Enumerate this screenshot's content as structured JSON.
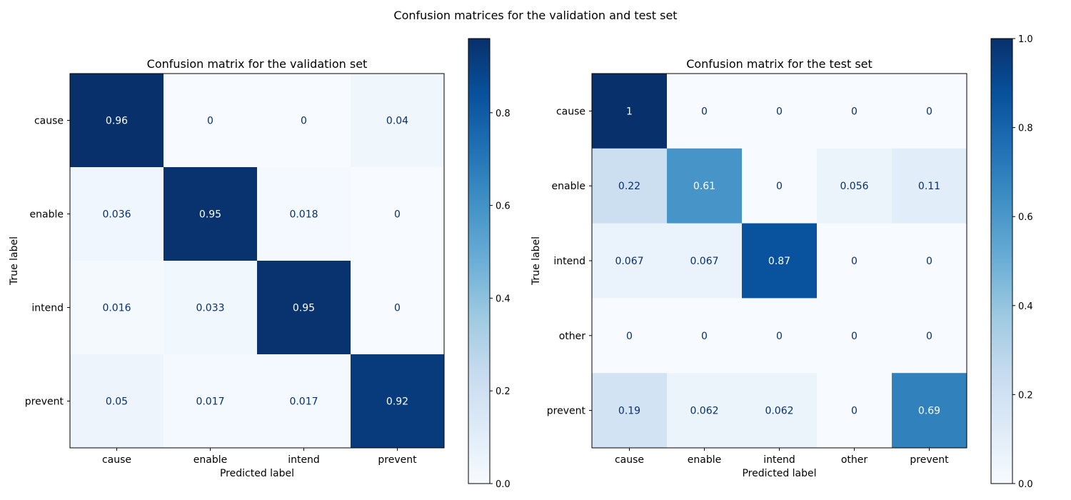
{
  "suptitle": "Confusion matrices for the validation and test set",
  "chart_data": [
    {
      "type": "heatmap",
      "title": "Confusion matrix for the validation set",
      "xlabel": "Predicted label",
      "ylabel": "True label",
      "x_categories": [
        "cause",
        "enable",
        "intend",
        "prevent"
      ],
      "y_categories": [
        "cause",
        "enable",
        "intend",
        "prevent"
      ],
      "values": [
        [
          0.96,
          0,
          0,
          0.04
        ],
        [
          0.036,
          0.95,
          0.018,
          0
        ],
        [
          0.016,
          0.033,
          0.95,
          0
        ],
        [
          0.05,
          0.017,
          0.017,
          0.92
        ]
      ],
      "cell_labels": [
        [
          "0.96",
          "0",
          "0",
          "0.04"
        ],
        [
          "0.036",
          "0.95",
          "0.018",
          "0"
        ],
        [
          "0.016",
          "0.033",
          "0.95",
          "0"
        ],
        [
          "0.05",
          "0.017",
          "0.017",
          "0.92"
        ]
      ],
      "colormap": "Blues",
      "colorbar": {
        "range": [
          0,
          0.96
        ],
        "ticks": [
          0.0,
          0.2,
          0.4,
          0.6,
          0.8
        ],
        "tick_labels": [
          "0.0",
          "0.2",
          "0.4",
          "0.6",
          "0.8"
        ]
      }
    },
    {
      "type": "heatmap",
      "title": "Confusion matrix for the test set",
      "xlabel": "Predicted label",
      "ylabel": "True label",
      "x_categories": [
        "cause",
        "enable",
        "intend",
        "other",
        "prevent"
      ],
      "y_categories": [
        "cause",
        "enable",
        "intend",
        "other",
        "prevent"
      ],
      "values": [
        [
          1,
          0,
          0,
          0,
          0
        ],
        [
          0.22,
          0.61,
          0,
          0.056,
          0.11
        ],
        [
          0.067,
          0.067,
          0.87,
          0,
          0
        ],
        [
          0,
          0,
          0,
          0,
          0
        ],
        [
          0.19,
          0.062,
          0.062,
          0,
          0.69
        ]
      ],
      "cell_labels": [
        [
          "1",
          "0",
          "0",
          "0",
          "0"
        ],
        [
          "0.22",
          "0.61",
          "0",
          "0.056",
          "0.11"
        ],
        [
          "0.067",
          "0.067",
          "0.87",
          "0",
          "0"
        ],
        [
          "0",
          "0",
          "0",
          "0",
          "0"
        ],
        [
          "0.19",
          "0.062",
          "0.062",
          "0",
          "0.69"
        ]
      ],
      "colormap": "Blues",
      "colorbar": {
        "range": [
          0,
          1.0
        ],
        "ticks": [
          0.0,
          0.2,
          0.4,
          0.6,
          0.8,
          1.0
        ],
        "tick_labels": [
          "0.0",
          "0.2",
          "0.4",
          "0.6",
          "0.8",
          "1.0"
        ]
      }
    }
  ],
  "colors": {
    "cmap_stops": [
      "#f7fbff",
      "#deebf7",
      "#c6dbef",
      "#9ecae1",
      "#6baed6",
      "#4292c6",
      "#2171b5",
      "#08519c",
      "#08306b"
    ],
    "text_dark": "#08306b",
    "text_light": "#ffffff"
  }
}
